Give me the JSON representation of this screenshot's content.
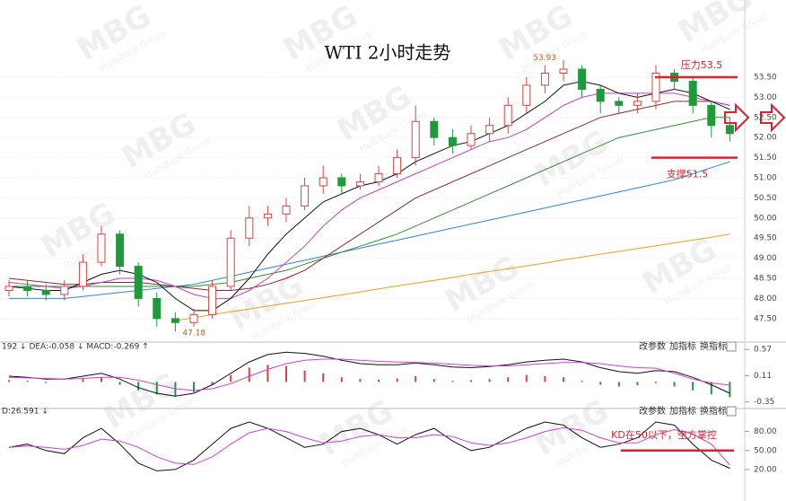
{
  "watermark": {
    "logo": "MBG",
    "name": "MultiBank Group"
  },
  "chart_data": [
    {
      "type": "candlestick",
      "title": "WTI 2小时走势",
      "up_color": "#e0403f",
      "down_color": "#1e9a3a",
      "open": [
        48.2,
        48.3,
        48.2,
        48.1,
        48.3,
        48.9,
        49.6,
        48.8,
        48.0,
        47.5,
        47.4,
        47.6,
        48.3,
        49.5,
        50.0,
        50.1,
        50.3,
        50.8,
        51.0,
        50.8,
        50.9,
        51.1,
        51.5,
        52.4,
        52.0,
        51.8,
        52.1,
        52.3,
        52.8,
        53.3,
        53.6,
        53.7,
        53.2,
        52.9,
        52.8,
        52.9,
        53.6,
        53.4,
        52.8,
        52.3
      ],
      "high": [
        48.45,
        48.45,
        48.35,
        48.45,
        49.1,
        49.8,
        49.7,
        48.9,
        48.15,
        47.65,
        47.75,
        48.45,
        49.7,
        50.3,
        50.3,
        50.5,
        51.0,
        51.3,
        51.1,
        51.1,
        51.3,
        51.7,
        52.8,
        52.5,
        52.2,
        52.3,
        52.5,
        53.0,
        53.5,
        53.8,
        53.93,
        53.8,
        53.3,
        53.0,
        53.1,
        53.8,
        53.7,
        53.5,
        52.9,
        52.5
      ],
      "low": [
        48.05,
        48.05,
        47.95,
        47.95,
        48.2,
        48.8,
        48.6,
        47.8,
        47.3,
        47.18,
        47.3,
        47.5,
        48.2,
        49.3,
        49.8,
        49.9,
        50.2,
        50.6,
        50.6,
        50.7,
        50.8,
        51.0,
        51.3,
        51.8,
        51.6,
        51.7,
        51.9,
        52.1,
        52.6,
        53.1,
        53.4,
        53.0,
        52.6,
        52.6,
        52.6,
        52.7,
        53.2,
        52.6,
        52.0,
        51.9
      ],
      "close": [
        48.3,
        48.2,
        48.1,
        48.3,
        48.9,
        49.6,
        48.8,
        48.0,
        47.5,
        47.4,
        47.6,
        48.3,
        49.5,
        50.0,
        50.1,
        50.3,
        50.8,
        51.0,
        50.8,
        50.9,
        51.1,
        51.5,
        52.4,
        52.0,
        51.8,
        52.1,
        52.3,
        52.8,
        53.3,
        53.6,
        53.7,
        53.2,
        52.9,
        52.8,
        52.9,
        53.6,
        53.4,
        52.8,
        52.3,
        52.1
      ],
      "lines": [
        {
          "color": "#e8a020",
          "values": [
            null,
            null,
            null,
            null,
            null,
            null,
            null,
            null,
            null,
            47.45,
            47.52,
            47.6,
            47.67,
            47.74,
            47.81,
            47.88,
            47.95,
            48.02,
            48.09,
            48.16,
            48.24,
            48.31,
            48.38,
            48.45,
            48.52,
            48.6,
            48.67,
            48.74,
            48.81,
            48.88,
            48.96,
            49.03,
            49.1,
            49.17,
            49.24,
            49.31,
            49.38,
            49.45,
            49.52,
            49.6
          ]
        },
        {
          "color": "#2a8ad0",
          "values": [
            48.0,
            48.0,
            48.0,
            48.0,
            48.05,
            48.1,
            48.15,
            48.2,
            48.25,
            48.3,
            48.35,
            48.45,
            48.55,
            48.65,
            48.75,
            48.85,
            48.95,
            49.05,
            49.15,
            49.25,
            49.35,
            49.45,
            49.55,
            49.65,
            49.75,
            49.85,
            49.95,
            50.05,
            50.15,
            50.25,
            50.35,
            50.45,
            50.55,
            50.65,
            50.75,
            50.85,
            50.95,
            51.1,
            51.25,
            51.4
          ]
        },
        {
          "color": "#3a8a3a",
          "values": [
            48.3,
            48.3,
            48.3,
            48.3,
            48.3,
            48.3,
            48.3,
            48.3,
            48.3,
            48.3,
            48.3,
            48.35,
            48.4,
            48.5,
            48.6,
            48.7,
            48.85,
            49.0,
            49.15,
            49.3,
            49.45,
            49.6,
            49.8,
            50.0,
            50.2,
            50.4,
            50.6,
            50.8,
            51.0,
            51.2,
            51.4,
            51.6,
            51.8,
            52.0,
            52.1,
            52.2,
            52.3,
            52.4,
            52.5,
            52.5
          ]
        },
        {
          "color": "#8a2a3a",
          "values": [
            48.5,
            48.45,
            48.4,
            48.35,
            48.35,
            48.4,
            48.4,
            48.4,
            48.35,
            48.3,
            48.25,
            48.2,
            48.2,
            48.25,
            48.35,
            48.5,
            48.7,
            49.0,
            49.3,
            49.6,
            49.9,
            50.2,
            50.5,
            50.7,
            50.9,
            51.1,
            51.3,
            51.5,
            51.7,
            51.9,
            52.1,
            52.3,
            52.5,
            52.6,
            52.7,
            52.8,
            52.9,
            52.9,
            52.9,
            52.8
          ]
        },
        {
          "color": "#c040c0",
          "values": [
            48.4,
            48.35,
            48.3,
            48.25,
            48.3,
            48.4,
            48.5,
            48.5,
            48.45,
            48.3,
            48.1,
            48.0,
            48.0,
            48.2,
            48.5,
            48.9,
            49.3,
            49.8,
            50.2,
            50.5,
            50.7,
            50.9,
            51.1,
            51.3,
            51.5,
            51.7,
            51.9,
            52.0,
            52.2,
            52.5,
            52.8,
            53.0,
            53.1,
            53.1,
            53.1,
            53.1,
            53.1,
            53.0,
            52.9,
            52.8
          ]
        },
        {
          "color": "#111111",
          "values": [
            48.3,
            48.25,
            48.2,
            48.2,
            48.4,
            48.6,
            48.7,
            48.6,
            48.4,
            48.0,
            47.7,
            47.7,
            48.0,
            48.5,
            49.1,
            49.6,
            50.0,
            50.4,
            50.6,
            50.8,
            50.9,
            51.1,
            51.4,
            51.6,
            51.8,
            51.9,
            52.1,
            52.3,
            52.6,
            52.9,
            53.3,
            53.4,
            53.3,
            53.1,
            53.0,
            53.1,
            53.2,
            53.1,
            52.9,
            52.7
          ]
        }
      ],
      "ylim": [
        47.05,
        54.08
      ],
      "yticks": [
        {
          "value": 47.5,
          "label": "47.50"
        },
        {
          "value": 48,
          "label": "48.00"
        },
        {
          "value": 48.5,
          "label": "48.50"
        },
        {
          "value": 49,
          "label": "49.00"
        },
        {
          "value": 49.5,
          "label": "49.50"
        },
        {
          "value": 50,
          "label": "50.00"
        },
        {
          "value": 50.5,
          "label": "50.50"
        },
        {
          "value": 51,
          "label": "51.00"
        },
        {
          "value": 51.5,
          "label": "51.50"
        },
        {
          "value": 52,
          "label": "52.00"
        },
        {
          "value": 52.5,
          "label": "52.50"
        },
        {
          "value": 53,
          "label": "53.00"
        },
        {
          "value": 53.5,
          "label": "53.50"
        }
      ],
      "annotations": [
        {
          "text": "压力53.5",
          "value": 53.5,
          "color": "#e0202a"
        },
        {
          "text": "支撑51.5",
          "value": 51.5,
          "color": "#e0202a"
        }
      ]
    },
    {
      "type": "macd",
      "header": "192 ↓ DEA:-0.058 ↓ MACD:-0.269 ↑",
      "buttons": [
        "改参数",
        "加指标",
        "换指标"
      ],
      "up_color": "#e0403f",
      "down_color": "#1e9a3a",
      "histogram": [
        0.03,
        0.02,
        -0.02,
        0.0,
        0.05,
        0.08,
        -0.05,
        -0.15,
        -0.22,
        -0.25,
        -0.18,
        -0.05,
        0.12,
        0.25,
        0.3,
        0.28,
        0.2,
        0.15,
        0.08,
        0.05,
        0.04,
        0.06,
        0.1,
        0.05,
        0.02,
        0.03,
        0.05,
        0.08,
        0.12,
        0.1,
        0.08,
        0.02,
        -0.05,
        -0.08,
        -0.06,
        -0.02,
        -0.08,
        -0.15,
        -0.22,
        -0.27
      ],
      "lines": [
        {
          "color": "#111111",
          "values": [
            0.1,
            0.08,
            0.05,
            0.05,
            0.1,
            0.15,
            0.05,
            -0.1,
            -0.2,
            -0.25,
            -0.2,
            -0.05,
            0.15,
            0.35,
            0.48,
            0.52,
            0.5,
            0.45,
            0.38,
            0.32,
            0.3,
            0.3,
            0.33,
            0.3,
            0.26,
            0.25,
            0.27,
            0.3,
            0.35,
            0.38,
            0.4,
            0.35,
            0.25,
            0.18,
            0.15,
            0.2,
            0.18,
            0.08,
            -0.05,
            -0.2
          ]
        },
        {
          "color": "#d040d0",
          "values": [
            0.08,
            0.07,
            0.06,
            0.05,
            0.06,
            0.08,
            0.08,
            0.03,
            -0.05,
            -0.12,
            -0.15,
            -0.12,
            -0.03,
            0.1,
            0.22,
            0.32,
            0.38,
            0.4,
            0.4,
            0.38,
            0.36,
            0.35,
            0.34,
            0.33,
            0.31,
            0.29,
            0.28,
            0.28,
            0.3,
            0.32,
            0.34,
            0.34,
            0.32,
            0.28,
            0.25,
            0.24,
            0.15,
            0.05,
            -0.02,
            -0.058
          ]
        }
      ],
      "ylim": [
        -0.42,
        0.62
      ],
      "yticks": [
        0.57,
        0.11,
        -0.35
      ]
    },
    {
      "type": "kd",
      "header": "D:26.591 ↓",
      "buttons": [
        "改参数",
        "加指标",
        "换指标"
      ],
      "lines": [
        {
          "color": "#111111",
          "values": [
            55,
            60,
            50,
            45,
            70,
            85,
            60,
            30,
            18,
            20,
            35,
            60,
            85,
            95,
            85,
            70,
            55,
            60,
            80,
            85,
            75,
            60,
            75,
            85,
            65,
            50,
            55,
            70,
            85,
            95,
            90,
            70,
            55,
            60,
            70,
            95,
            90,
            60,
            35,
            22
          ]
        },
        {
          "color": "#d040d0",
          "values": [
            55,
            57,
            55,
            52,
            58,
            68,
            65,
            55,
            40,
            30,
            28,
            40,
            60,
            78,
            85,
            80,
            70,
            62,
            65,
            72,
            75,
            70,
            70,
            75,
            72,
            62,
            58,
            62,
            70,
            80,
            86,
            82,
            70,
            62,
            62,
            75,
            83,
            76,
            60,
            27
          ]
        }
      ],
      "ylim": [
        10,
        112
      ],
      "yticks": [
        {
          "value": 80,
          "label": "80.00"
        },
        {
          "value": 50,
          "label": "50.00"
        },
        {
          "value": 20,
          "label": "20.00"
        }
      ],
      "annotations": [
        {
          "text": "KD在50以下，空方掌控",
          "value": 50,
          "color": "#e0202a"
        }
      ]
    }
  ]
}
